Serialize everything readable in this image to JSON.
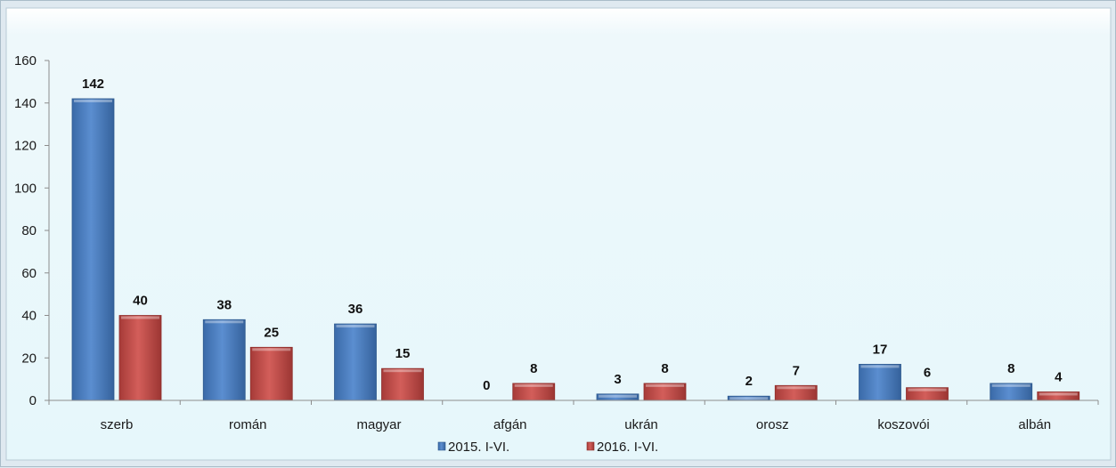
{
  "chart_data": {
    "type": "bar",
    "title": "",
    "xlabel": "",
    "ylabel": "",
    "categories": [
      "szerb",
      "román",
      "magyar",
      "afgán",
      "ukrán",
      "orosz",
      "koszovói",
      "albán"
    ],
    "series": [
      {
        "name": "2015. I-VI.",
        "values": [
          142,
          38,
          36,
          0,
          3,
          2,
          17,
          8
        ],
        "color": "#4f81bd"
      },
      {
        "name": "2016. I-VI.",
        "values": [
          40,
          25,
          15,
          8,
          8,
          7,
          6,
          4
        ],
        "color": "#c0504d"
      }
    ],
    "ylim": [
      0,
      160
    ],
    "yticks": [
      0,
      20,
      40,
      60,
      80,
      100,
      120,
      140,
      160
    ],
    "grid": false,
    "data_labels": true,
    "legend_position": "bottom"
  }
}
